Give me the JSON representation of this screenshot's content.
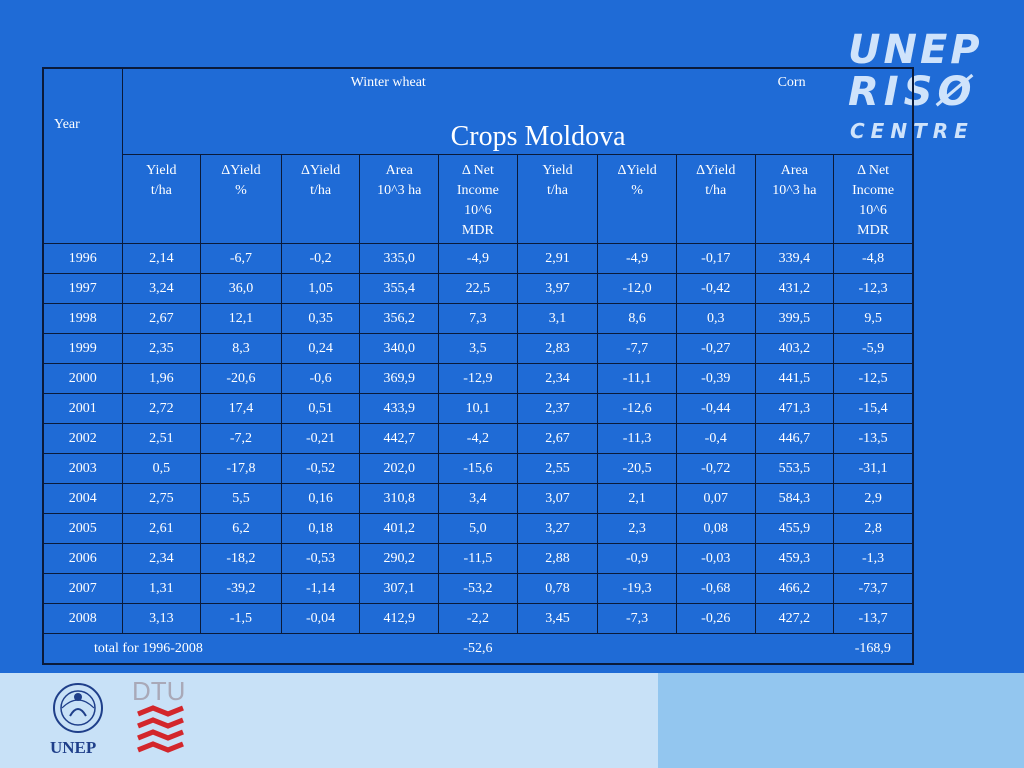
{
  "slide": {
    "title": "Crops Moldova",
    "year_label": "Year",
    "group_winter": "Winter wheat",
    "group_corn": "Corn",
    "columns": [
      [
        "Yield",
        "t/ha"
      ],
      [
        "ΔYield",
        "%"
      ],
      [
        "ΔYield",
        "t/ha"
      ],
      [
        "Area",
        "10^3 ha"
      ],
      [
        "Δ Net",
        "Income",
        "10^6",
        "MDR"
      ],
      [
        "Yield",
        "t/ha"
      ],
      [
        "ΔYield",
        "%"
      ],
      [
        "ΔYield",
        "t/ha"
      ],
      [
        "Area",
        "10^3 ha"
      ],
      [
        "Δ Net",
        "Income",
        "10^6",
        "MDR"
      ]
    ],
    "rows": [
      [
        "1996",
        "2,14",
        "-6,7",
        "-0,2",
        "335,0",
        "-4,9",
        "2,91",
        "-4,9",
        "-0,17",
        "339,4",
        "-4,8"
      ],
      [
        "1997",
        "3,24",
        "36,0",
        "1,05",
        "355,4",
        "22,5",
        "3,97",
        "-12,0",
        "-0,42",
        "431,2",
        "-12,3"
      ],
      [
        "1998",
        "2,67",
        "12,1",
        "0,35",
        "356,2",
        "7,3",
        "3,1",
        "8,6",
        "0,3",
        "399,5",
        "9,5"
      ],
      [
        "1999",
        "2,35",
        "8,3",
        "0,24",
        "340,0",
        "3,5",
        "2,83",
        "-7,7",
        "-0,27",
        "403,2",
        "-5,9"
      ],
      [
        "2000",
        "1,96",
        "-20,6",
        "-0,6",
        "369,9",
        "-12,9",
        "2,34",
        "-11,1",
        "-0,39",
        "441,5",
        "-12,5"
      ],
      [
        "2001",
        "2,72",
        "17,4",
        "0,51",
        "433,9",
        "10,1",
        "2,37",
        "-12,6",
        "-0,44",
        "471,3",
        "-15,4"
      ],
      [
        "2002",
        "2,51",
        "-7,2",
        "-0,21",
        "442,7",
        "-4,2",
        "2,67",
        "-11,3",
        "-0,4",
        "446,7",
        "-13,5"
      ],
      [
        "2003",
        "0,5",
        "-17,8",
        "-0,52",
        "202,0",
        "-15,6",
        "2,55",
        "-20,5",
        "-0,72",
        "553,5",
        "-31,1"
      ],
      [
        "2004",
        "2,75",
        "5,5",
        "0,16",
        "310,8",
        "3,4",
        "3,07",
        "2,1",
        "0,07",
        "584,3",
        "2,9"
      ],
      [
        "2005",
        "2,61",
        "6,2",
        "0,18",
        "401,2",
        "5,0",
        "3,27",
        "2,3",
        "0,08",
        "455,9",
        "2,8"
      ],
      [
        "2006",
        "2,34",
        "-18,2",
        "-0,53",
        "290,2",
        "-11,5",
        "2,88",
        "-0,9",
        "-0,03",
        "459,3",
        "-1,3"
      ],
      [
        "2007",
        "1,31",
        "-39,2",
        "-1,14",
        "307,1",
        "-53,2",
        "0,78",
        "-19,3",
        "-0,68",
        "466,2",
        "-73,7"
      ],
      [
        "2008",
        "3,13",
        "-1,5",
        "-0,04",
        "412,9",
        "-2,2",
        "3,45",
        "-7,3",
        "-0,26",
        "427,2",
        "-13,7"
      ]
    ],
    "total": {
      "label": "total for 1996-2008",
      "wheat_net": "-52,6",
      "corn_net": "-168,9"
    }
  },
  "logos": {
    "top_right": [
      "UNEP",
      "RISØ",
      "CENTRE"
    ],
    "bottom_left": "UNEP",
    "bottom_dtu": "DTU"
  },
  "colors": {
    "background": "#1f6bd6",
    "band_light": "#c8e1f7",
    "band_mid": "#93c6ef"
  }
}
